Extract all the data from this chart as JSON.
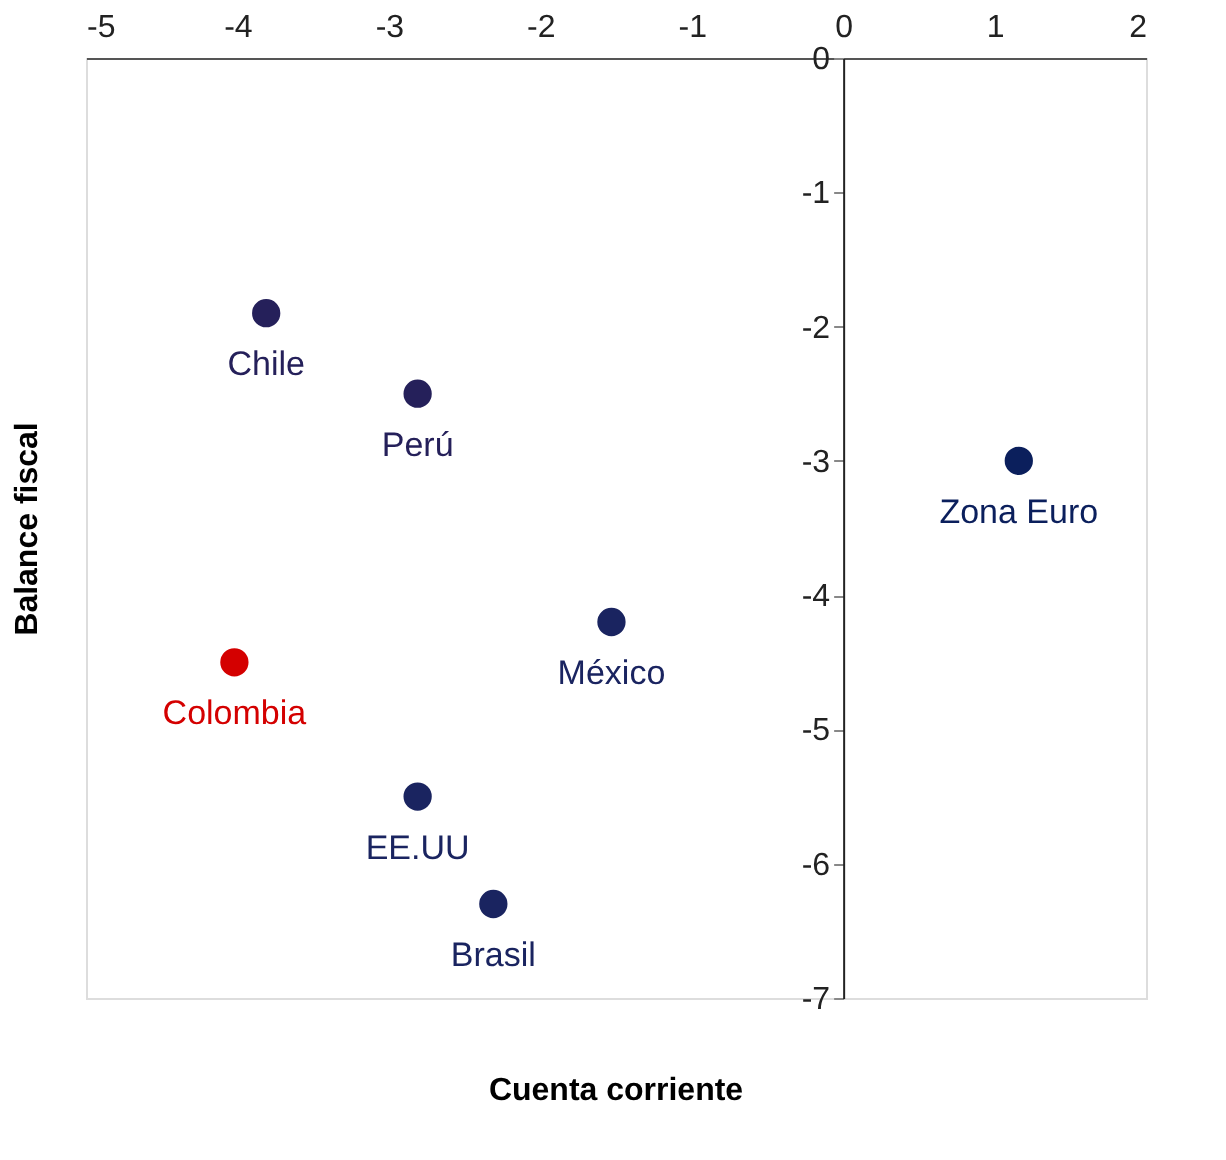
{
  "chart_data": {
    "type": "scatter",
    "xlabel": "Cuenta corriente",
    "ylabel": "Balance fiscal",
    "xlim": [
      -5,
      2
    ],
    "xticks": [
      -5,
      -4,
      -3,
      -2,
      -1,
      0,
      1,
      2
    ],
    "ylim": [
      -7,
      0
    ],
    "yticks": [
      -7,
      -6,
      -5,
      -4,
      -3,
      -2,
      -1,
      0
    ],
    "grid": false,
    "marker": "circle",
    "series": [
      {
        "name": "Chile",
        "color": "#25205a",
        "x": [
          -3.81
        ],
        "values": [
          -1.9
        ]
      },
      {
        "name": "Perú",
        "color": "#25205a",
        "x": [
          -2.81
        ],
        "values": [
          -2.5
        ]
      },
      {
        "name": "Zona Euro",
        "color": "#0b1f5c",
        "x": [
          1.16
        ],
        "values": [
          -3.0
        ]
      },
      {
        "name": "México",
        "color": "#1a2460",
        "x": [
          -1.53
        ],
        "values": [
          -4.2
        ]
      },
      {
        "name": "Colombia",
        "color": "#d40000",
        "x": [
          -4.02
        ],
        "values": [
          -4.5
        ]
      },
      {
        "name": "EE.UU",
        "color": "#1a2460",
        "x": [
          -2.81
        ],
        "values": [
          -5.5
        ]
      },
      {
        "name": "Brasil",
        "color": "#1a2460",
        "x": [
          -2.31
        ],
        "values": [
          -6.3
        ]
      }
    ]
  }
}
